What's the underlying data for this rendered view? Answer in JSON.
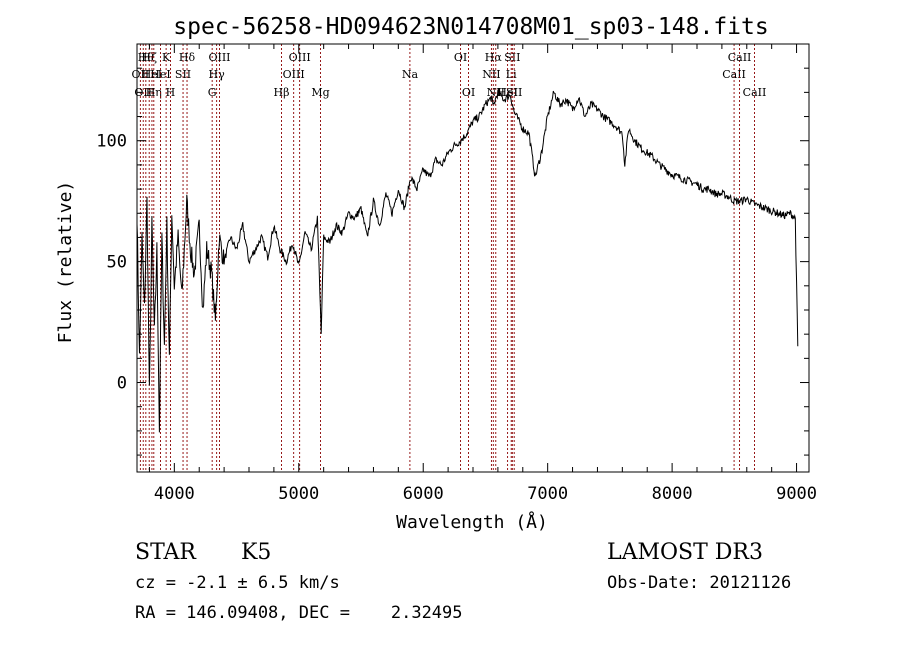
{
  "chart_data": {
    "type": "line",
    "title": "spec-56258-HD094623N014708M01_sp03-148.fits",
    "xlabel": "Wavelength (Å)",
    "ylabel": "Flux (relative)",
    "xlim": [
      3700,
      9100
    ],
    "ylim": [
      -37,
      140
    ],
    "xticks": [
      4000,
      5000,
      6000,
      7000,
      8000,
      9000
    ],
    "yticks": [
      0,
      50,
      100
    ],
    "grid": false,
    "line_color": "#000000",
    "marker_color": "#8b0000",
    "series": [
      {
        "x": [
          3700,
          3720,
          3740,
          3760,
          3780,
          3800,
          3820,
          3840,
          3860,
          3880,
          3900,
          3920,
          3940,
          3960,
          3980,
          4000,
          4030,
          4060,
          4100,
          4130,
          4160,
          4200,
          4230,
          4260,
          4300,
          4330,
          4360,
          4400,
          4450,
          4500,
          4550,
          4600,
          4650,
          4700,
          4750,
          4800,
          4850,
          4900,
          4950,
          5000,
          5050,
          5100,
          5150,
          5180,
          5200,
          5250,
          5300,
          5350,
          5400,
          5450,
          5500,
          5550,
          5600,
          5650,
          5700,
          5750,
          5800,
          5850,
          5900,
          5950,
          6000,
          6050,
          6100,
          6150,
          6200,
          6250,
          6300,
          6350,
          6400,
          6450,
          6500,
          6550,
          6560,
          6600,
          6650,
          6700,
          6730,
          6750,
          6800,
          6850,
          6880,
          6900,
          6950,
          7000,
          7050,
          7100,
          7150,
          7200,
          7250,
          7300,
          7350,
          7400,
          7450,
          7500,
          7550,
          7600,
          7620,
          7650,
          7700,
          7750,
          7800,
          7850,
          7900,
          7950,
          8000,
          8050,
          8100,
          8150,
          8200,
          8250,
          8300,
          8350,
          8400,
          8450,
          8500,
          8550,
          8600,
          8650,
          8700,
          8750,
          8800,
          8850,
          8900,
          8950,
          8990,
          9000,
          9010
        ],
        "y": [
          70,
          10,
          60,
          30,
          75,
          -5,
          65,
          20,
          55,
          -20,
          60,
          15,
          65,
          10,
          70,
          40,
          60,
          35,
          75,
          55,
          45,
          65,
          30,
          55,
          45,
          25,
          60,
          50,
          60,
          55,
          65,
          50,
          55,
          60,
          52,
          65,
          55,
          50,
          58,
          48,
          62,
          55,
          68,
          20,
          60,
          58,
          65,
          62,
          70,
          68,
          72,
          60,
          75,
          65,
          78,
          70,
          80,
          72,
          85,
          80,
          88,
          85,
          92,
          90,
          95,
          98,
          100,
          103,
          108,
          110,
          115,
          118,
          114,
          120,
          117,
          119,
          112,
          110,
          105,
          103,
          92,
          85,
          95,
          110,
          120,
          115,
          117,
          113,
          118,
          110,
          115,
          113,
          110,
          108,
          106,
          103,
          90,
          105,
          100,
          97,
          95,
          93,
          90,
          88,
          86,
          85,
          84,
          83,
          82,
          80,
          80,
          78,
          78,
          77,
          75,
          75,
          76,
          74,
          73,
          72,
          71,
          70,
          69,
          70,
          68,
          40,
          15
        ]
      }
    ],
    "line_markers": [
      {
        "x": 3727,
        "row": 1,
        "label": "OII"
      },
      {
        "x": 3750,
        "row": 2,
        "label": "OII"
      },
      {
        "x": 3771,
        "row": 0,
        "label": "Hθ"
      },
      {
        "x": 3798,
        "row": 0,
        "label": "Hζ"
      },
      {
        "x": 3820,
        "row": 1,
        "label": "HeI"
      },
      {
        "x": 3835,
        "row": 2,
        "label": "Hη"
      },
      {
        "x": 3889,
        "row": 1,
        "label": "HeI"
      },
      {
        "x": 3934,
        "row": 0,
        "label": "K"
      },
      {
        "x": 3969,
        "row": 2,
        "label": "H"
      },
      {
        "x": 4070,
        "row": 1,
        "label": "SII"
      },
      {
        "x": 4102,
        "row": 0,
        "label": "Hδ"
      },
      {
        "x": 4304,
        "row": 2,
        "label": "G"
      },
      {
        "x": 4340,
        "row": 1,
        "label": "Hγ"
      },
      {
        "x": 4363,
        "row": 0,
        "label": "OIII"
      },
      {
        "x": 4861,
        "row": 2,
        "label": "Hβ"
      },
      {
        "x": 4959,
        "row": 1,
        "label": "OIII"
      },
      {
        "x": 5007,
        "row": 0,
        "label": "OIII"
      },
      {
        "x": 5175,
        "row": 2,
        "label": "Mg"
      },
      {
        "x": 5893,
        "row": 1,
        "label": "Na"
      },
      {
        "x": 6300,
        "row": 0,
        "label": "OI"
      },
      {
        "x": 6364,
        "row": 2,
        "label": "OI"
      },
      {
        "x": 6548,
        "row": 1,
        "label": "NII"
      },
      {
        "x": 6563,
        "row": 0,
        "label": "Hα"
      },
      {
        "x": 6583,
        "row": 2,
        "label": "NII"
      },
      {
        "x": 6678,
        "row": 2,
        "label": "HeI"
      },
      {
        "x": 6707,
        "row": 1,
        "label": "Li"
      },
      {
        "x": 6716,
        "row": 0,
        "label": "SII"
      },
      {
        "x": 6731,
        "row": 2,
        "label": "SII"
      },
      {
        "x": 8498,
        "row": 1,
        "label": "CaII"
      },
      {
        "x": 8542,
        "row": 0,
        "label": "CaII"
      },
      {
        "x": 8662,
        "row": 2,
        "label": "CaII"
      }
    ]
  },
  "info": {
    "object_class": "STAR",
    "subclass": "K5",
    "survey": "LAMOST DR3",
    "redshift": "cz = -2.1 ± 6.5 km/s",
    "obs_date": "Obs-Date: 20121126",
    "coords": "RA = 146.09408, DEC =    2.32495"
  }
}
